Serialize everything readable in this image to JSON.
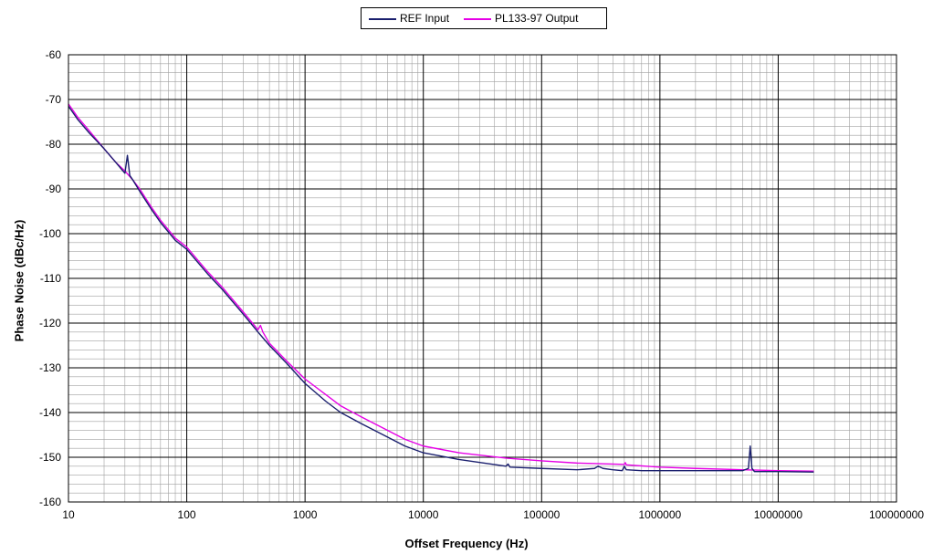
{
  "chart_data": {
    "type": "line",
    "xscale": "log",
    "xlabel": "Offset Frequency (Hz)",
    "ylabel": "Phase Noise (dBc/Hz)",
    "xlim": [
      10,
      100000000
    ],
    "ylim": [
      -160,
      -60
    ],
    "x_ticks": [
      10,
      100,
      1000,
      10000,
      100000,
      1000000,
      10000000,
      100000000
    ],
    "x_tick_labels": [
      "10",
      "100",
      "1000",
      "10000",
      "100000",
      "1000000",
      "10000000",
      "100000000"
    ],
    "y_ticks": [
      -60,
      -70,
      -80,
      -90,
      -100,
      -110,
      -120,
      -130,
      -140,
      -150,
      -160
    ],
    "grid": true,
    "legend_position": "top-center",
    "series": [
      {
        "name": "REF Input",
        "color": "#1a1f6e",
        "points": [
          [
            10,
            -71.5
          ],
          [
            12,
            -74.5
          ],
          [
            15,
            -77.5
          ],
          [
            20,
            -81
          ],
          [
            25,
            -84
          ],
          [
            30,
            -86.5
          ],
          [
            31.5,
            -82.5
          ],
          [
            33,
            -87
          ],
          [
            35,
            -88
          ],
          [
            40,
            -90.5
          ],
          [
            50,
            -94.5
          ],
          [
            60,
            -97.5
          ],
          [
            80,
            -101.5
          ],
          [
            100,
            -103.5
          ],
          [
            150,
            -109
          ],
          [
            200,
            -112.5
          ],
          [
            300,
            -118
          ],
          [
            400,
            -122
          ],
          [
            500,
            -125
          ],
          [
            700,
            -129
          ],
          [
            1000,
            -133.5
          ],
          [
            1500,
            -137.5
          ],
          [
            2000,
            -140
          ],
          [
            3000,
            -142.5
          ],
          [
            5000,
            -145.5
          ],
          [
            7000,
            -147.5
          ],
          [
            10000,
            -149
          ],
          [
            20000,
            -150.5
          ],
          [
            50000,
            -152
          ],
          [
            52000,
            -151.5
          ],
          [
            54000,
            -152.2
          ],
          [
            100000,
            -152.5
          ],
          [
            200000,
            -152.8
          ],
          [
            280000,
            -152.5
          ],
          [
            300000,
            -152
          ],
          [
            330000,
            -152.5
          ],
          [
            400000,
            -152.8
          ],
          [
            480000,
            -153
          ],
          [
            500000,
            -152
          ],
          [
            520000,
            -152.8
          ],
          [
            700000,
            -153
          ],
          [
            1000000,
            -153
          ],
          [
            2000000,
            -153
          ],
          [
            4000000,
            -153
          ],
          [
            5000000,
            -153
          ],
          [
            5600000,
            -152.5
          ],
          [
            5800000,
            -147.5
          ],
          [
            6000000,
            -152.5
          ],
          [
            6300000,
            -153.2
          ],
          [
            10000000,
            -153.2
          ],
          [
            20000000,
            -153.3
          ]
        ]
      },
      {
        "name": "PL133-97 Output",
        "color": "#e600e6",
        "points": [
          [
            10,
            -71
          ],
          [
            12,
            -74
          ],
          [
            15,
            -77
          ],
          [
            20,
            -81
          ],
          [
            25,
            -84
          ],
          [
            30,
            -86
          ],
          [
            35,
            -88
          ],
          [
            40,
            -90
          ],
          [
            50,
            -94
          ],
          [
            60,
            -97
          ],
          [
            80,
            -101
          ],
          [
            100,
            -103
          ],
          [
            150,
            -108.5
          ],
          [
            200,
            -112
          ],
          [
            300,
            -117.5
          ],
          [
            400,
            -121.5
          ],
          [
            420,
            -120.5
          ],
          [
            440,
            -122
          ],
          [
            500,
            -124.5
          ],
          [
            700,
            -128.5
          ],
          [
            1000,
            -132.5
          ],
          [
            1500,
            -136
          ],
          [
            2000,
            -138.5
          ],
          [
            3000,
            -141
          ],
          [
            5000,
            -144
          ],
          [
            7000,
            -146
          ],
          [
            10000,
            -147.5
          ],
          [
            20000,
            -149
          ],
          [
            50000,
            -150.2
          ],
          [
            100000,
            -150.8
          ],
          [
            200000,
            -151.3
          ],
          [
            500000,
            -151.6
          ],
          [
            510000,
            -151.2
          ],
          [
            520000,
            -151.7
          ],
          [
            1000000,
            -152.2
          ],
          [
            2000000,
            -152.5
          ],
          [
            5000000,
            -152.8
          ],
          [
            10000000,
            -153
          ],
          [
            20000000,
            -153.1
          ]
        ]
      }
    ]
  }
}
